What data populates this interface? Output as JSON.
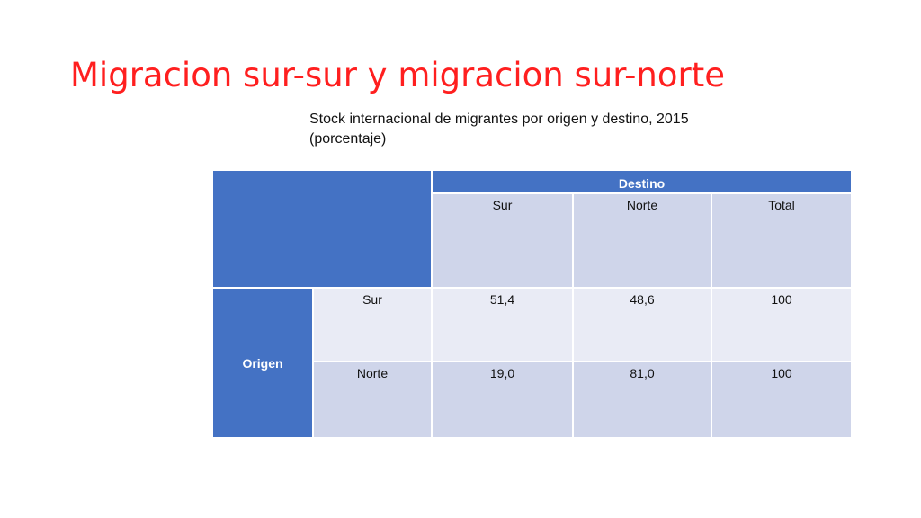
{
  "slide": {
    "title": "Migracion sur-sur y migracion sur-norte",
    "subtitle": "Stock internacional de migrantes por origen y destino, 2015 (porcentaje)"
  },
  "table": {
    "destino_header": "Destino",
    "origen_header": "Origen",
    "columns": [
      "Sur",
      "Norte",
      "Total"
    ],
    "rows": [
      {
        "label": "Sur",
        "values": [
          "51,4",
          "48,6",
          "100"
        ]
      },
      {
        "label": "Norte",
        "values": [
          "19,0",
          "81,0",
          "100"
        ]
      }
    ],
    "colors": {
      "header_blue": "#4472c4",
      "row_light": "#cfd5ea",
      "row_lighter": "#e9ebf5",
      "title_red": "#ff1f1f"
    }
  }
}
